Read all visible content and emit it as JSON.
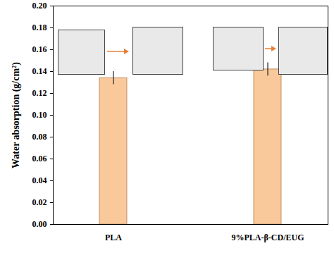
{
  "chart_data": {
    "type": "bar",
    "categories": [
      "PLA",
      "9%PLA-β-CD/EUG"
    ],
    "values": [
      0.134,
      0.142
    ],
    "errors": [
      0.006,
      0.006
    ],
    "color": "#F9C89B",
    "ylabel": "Water absorption (g/cm²)",
    "ylim": [
      0,
      0.2
    ],
    "yticks": [
      {
        "value": 0,
        "label": "0.00"
      },
      {
        "value": 0.02,
        "label": "0.02"
      },
      {
        "value": 0.04,
        "label": "0.04"
      },
      {
        "value": 0.06,
        "label": "0.06"
      },
      {
        "value": 0.08,
        "label": "0.08"
      },
      {
        "value": 0.1,
        "label": "0.10"
      },
      {
        "value": 0.12,
        "label": "0.12"
      },
      {
        "value": 0.14,
        "label": "0.14"
      },
      {
        "value": 0.16,
        "label": "0.16"
      },
      {
        "value": 0.18,
        "label": "0.18"
      },
      {
        "value": 0.2,
        "label": "0.20"
      }
    ]
  }
}
